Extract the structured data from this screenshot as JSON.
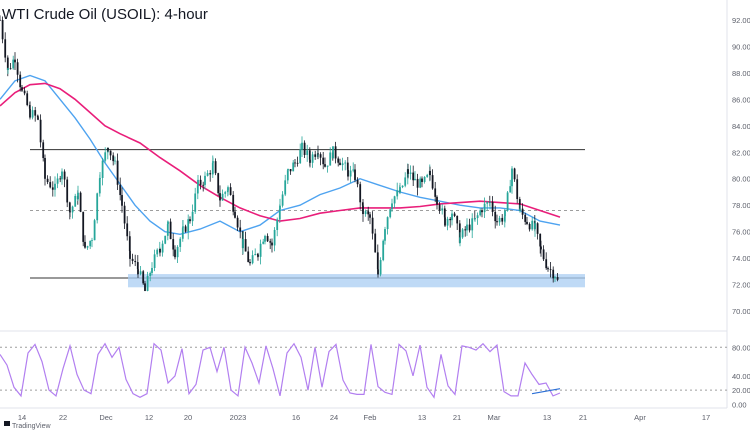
{
  "title": "WTI Crude Oil (USOIL): 4-hour",
  "attribution": "TradingView",
  "colors": {
    "up": "#26a69a",
    "down": "#131722",
    "ma_fast": "#4ea3f0",
    "ma_slow": "#e91e7a",
    "rsi": "#b27ff0",
    "zone": "#a9cdf3",
    "rsi_divergence": "#2b6fd6",
    "level_line": "#333333",
    "dashed_level": "#9e9e9e"
  },
  "chart_data": [
    {
      "type": "line",
      "panel": "price",
      "ylim": [
        68.5,
        93.5
      ],
      "y_ticks": [
        "92.00",
        "90.00",
        "88.00",
        "86.00",
        "84.00",
        "82.00",
        "80.00",
        "78.00",
        "76.00",
        "74.00",
        "72.00",
        "70.00"
      ],
      "x_ticks": [
        "14",
        "22",
        "Dec",
        "12",
        "20",
        "2023",
        "16",
        "24",
        "Feb",
        "13",
        "21",
        "Mar",
        "13",
        "21",
        "Apr",
        "17"
      ],
      "series": [
        {
          "kind": "price",
          "x": [
            0,
            8,
            15,
            22,
            30,
            38,
            45,
            55,
            62,
            70,
            78,
            85,
            92,
            100,
            108,
            115,
            122,
            130,
            138,
            145,
            152,
            160,
            168,
            175,
            183,
            190,
            198,
            205,
            213,
            220,
            228,
            235,
            243,
            250,
            258,
            265,
            272,
            280,
            288,
            295,
            302,
            310,
            318,
            325,
            333,
            340,
            348,
            355,
            363,
            370,
            378,
            385,
            392,
            400,
            408,
            415,
            422,
            430,
            437,
            445,
            452,
            460,
            467,
            475,
            482,
            490,
            497,
            505,
            512,
            520,
            527,
            535,
            541,
            548,
            555,
            560
          ],
          "y": [
            92.0,
            88.2,
            89.2,
            86.5,
            85.0,
            84.5,
            80.0,
            79.2,
            80.8,
            77.5,
            78.8,
            74.5,
            75.6,
            80.5,
            82.5,
            81.0,
            78.0,
            74.0,
            73.2,
            71.5,
            73.5,
            74.8,
            76.4,
            74.5,
            76.0,
            77.0,
            79.5,
            80.0,
            81.0,
            78.5,
            79.3,
            77.5,
            75.0,
            73.5,
            74.5,
            76.0,
            75.0,
            78.0,
            80.5,
            81.2,
            82.3,
            81.5,
            82.3,
            81.0,
            82.0,
            81.4,
            80.5,
            80.2,
            77.5,
            77.0,
            72.8,
            76.5,
            78.5,
            79.0,
            80.5,
            79.8,
            79.5,
            80.3,
            78.5,
            76.8,
            77.5,
            75.5,
            76.3,
            76.8,
            77.8,
            78.2,
            76.8,
            77.2,
            80.8,
            77.5,
            76.8,
            76.2,
            74.5,
            73.3,
            72.8,
            71.7
          ]
        },
        {
          "name": "",
          "kind": "moving-average-fast",
          "x": [
            0,
            15,
            30,
            45,
            60,
            75,
            90,
            105,
            120,
            135,
            150,
            165,
            180,
            200,
            220,
            240,
            260,
            280,
            300,
            320,
            340,
            360,
            380,
            400,
            420,
            440,
            460,
            480,
            500,
            520,
            540,
            560
          ],
          "y": [
            86.0,
            87.4,
            87.8,
            87.4,
            86.0,
            84.6,
            83.0,
            81.2,
            79.6,
            78.0,
            76.8,
            76.0,
            75.8,
            76.2,
            76.8,
            76.0,
            76.5,
            77.6,
            78.0,
            78.8,
            79.3,
            80.0,
            79.5,
            79.0,
            78.6,
            78.3,
            78.0,
            77.8,
            77.8,
            77.6,
            76.8,
            76.5
          ]
        },
        {
          "name": "",
          "kind": "moving-average-slow",
          "x": [
            0,
            15,
            30,
            45,
            60,
            75,
            90,
            105,
            120,
            140,
            160,
            180,
            200,
            220,
            240,
            260,
            280,
            300,
            320,
            340,
            360,
            380,
            400,
            420,
            440,
            460,
            480,
            500,
            520,
            540,
            560
          ],
          "y": [
            85.5,
            86.5,
            87.1,
            87.2,
            86.8,
            86.0,
            85.0,
            84.0,
            83.4,
            82.7,
            81.6,
            80.6,
            79.5,
            78.6,
            77.8,
            77.2,
            76.8,
            77.0,
            77.4,
            77.6,
            77.8,
            77.8,
            77.8,
            77.9,
            78.1,
            78.2,
            78.3,
            78.2,
            78.1,
            77.6,
            77.1
          ]
        }
      ],
      "levels": [
        {
          "kind": "solid",
          "y": 82.2
        },
        {
          "kind": "dashed",
          "y": 77.6
        },
        {
          "kind": "solid",
          "y": 72.5
        },
        {
          "kind": "support-zone",
          "y_from": 71.8,
          "y_to": 72.8
        }
      ]
    },
    {
      "type": "line",
      "panel": "oscillator",
      "ylim": [
        -5,
        100
      ],
      "y_ticks": [
        "80.00",
        "40.00",
        "20.00",
        "0.00"
      ],
      "dashed_levels": [
        80,
        20
      ],
      "series": [
        {
          "kind": "oscillator",
          "x": [
            0,
            7,
            14,
            21,
            28,
            35,
            42,
            49,
            56,
            63,
            70,
            77,
            84,
            91,
            98,
            105,
            112,
            119,
            126,
            133,
            140,
            147,
            154,
            161,
            168,
            175,
            182,
            189,
            196,
            203,
            210,
            217,
            224,
            231,
            238,
            245,
            252,
            259,
            266,
            273,
            280,
            287,
            294,
            301,
            308,
            315,
            322,
            329,
            336,
            343,
            350,
            357,
            364,
            371,
            378,
            385,
            392,
            399,
            406,
            413,
            420,
            427,
            434,
            441,
            448,
            455,
            462,
            469,
            476,
            483,
            490,
            497,
            504,
            511,
            518,
            525,
            532,
            539,
            546,
            553,
            560
          ],
          "y": [
            70,
            55,
            24,
            12,
            72,
            84,
            60,
            20,
            12,
            50,
            82,
            42,
            20,
            15,
            70,
            85,
            66,
            80,
            35,
            15,
            10,
            15,
            85,
            76,
            30,
            40,
            78,
            15,
            28,
            76,
            80,
            46,
            80,
            20,
            12,
            80,
            58,
            30,
            82,
            50,
            12,
            72,
            85,
            66,
            20,
            80,
            24,
            74,
            84,
            34,
            16,
            14,
            14,
            84,
            25,
            17,
            14,
            84,
            75,
            40,
            83,
            24,
            10,
            70,
            26,
            14,
            82,
            80,
            76,
            85,
            74,
            83,
            18,
            12,
            12,
            58,
            42,
            28,
            30,
            12,
            16
          ]
        }
      ],
      "divergence_line": {
        "x": [
          532,
          560
        ],
        "y": [
          15,
          22
        ]
      }
    }
  ]
}
